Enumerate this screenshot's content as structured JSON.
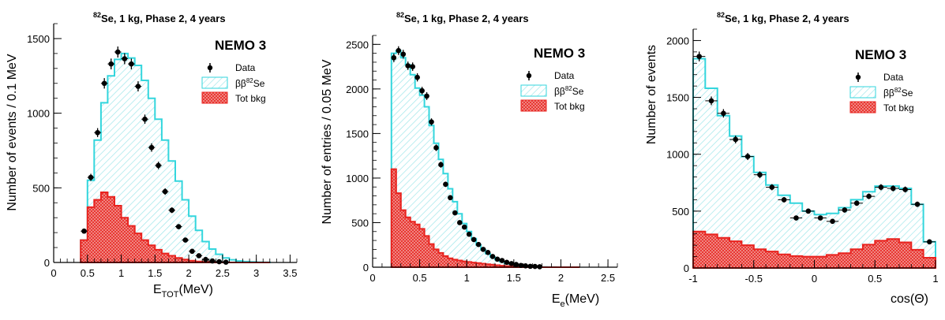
{
  "colors": {
    "signal": "#33d6dd",
    "signal_hatch": "#9fe6ea",
    "bkg": "#e8231f",
    "bkg_fill": "#f19b96",
    "data": "#000000"
  },
  "chart_data": [
    {
      "type": "histogram",
      "title_sup": "82",
      "title": "Se, 1 kg, Phase 2, 4 years",
      "experiment": "NEMO 3",
      "legend": {
        "data": "Data",
        "signal": "ββ",
        "signal_sup": "82",
        "signal_tail": "Se",
        "bkg": "Tot bkg"
      },
      "xlabel_main": "E",
      "xlabel_sub": "TOT",
      "xlabel_tail": "(MeV)",
      "ylabel": "Number of events / 0.1 MeV",
      "xlim": [
        0,
        3.6
      ],
      "ylim": [
        0,
        1600
      ],
      "xticks": [
        0,
        0.5,
        1,
        1.5,
        2,
        2.5,
        3,
        3.5
      ],
      "xtick_labels": [
        "0",
        "0.5",
        "1",
        "1.5",
        "2",
        "2.5",
        "3",
        "3.5"
      ],
      "yticks": [
        0,
        500,
        1000,
        1500
      ],
      "bin_edges": [
        0.4,
        0.5,
        0.6,
        0.7,
        0.8,
        0.9,
        1.0,
        1.1,
        1.2,
        1.3,
        1.4,
        1.5,
        1.6,
        1.7,
        1.8,
        1.9,
        2.0,
        2.1,
        2.2,
        2.3,
        2.4,
        2.5,
        2.6,
        2.7,
        2.8,
        2.9,
        3.0,
        3.1,
        3.2
      ],
      "total_mc": [
        150,
        550,
        820,
        1070,
        1250,
        1360,
        1400,
        1370,
        1320,
        1220,
        1100,
        960,
        820,
        680,
        545,
        420,
        310,
        215,
        140,
        90,
        55,
        30,
        18,
        10,
        6,
        4,
        2,
        1
      ],
      "bkg": [
        150,
        370,
        420,
        470,
        440,
        380,
        300,
        245,
        195,
        150,
        115,
        85,
        60,
        45,
        30,
        20,
        12,
        7,
        4,
        2,
        1,
        1,
        0,
        0,
        0,
        0,
        0,
        0
      ],
      "data": {
        "x": [
          0.45,
          0.55,
          0.65,
          0.75,
          0.85,
          0.95,
          1.05,
          1.15,
          1.25,
          1.35,
          1.45,
          1.55,
          1.65,
          1.75,
          1.85,
          1.95,
          2.05,
          2.15,
          2.25,
          2.35,
          2.45,
          2.55
        ],
        "y": [
          210,
          570,
          870,
          1200,
          1330,
          1410,
          1365,
          1330,
          1180,
          960,
          770,
          650,
          475,
          350,
          240,
          150,
          75,
          45,
          20,
          10,
          5,
          2
        ],
        "err": [
          15,
          24,
          30,
          35,
          36,
          37,
          37,
          36,
          34,
          31,
          28,
          25,
          22,
          19,
          16,
          12,
          9,
          7,
          5,
          3,
          2,
          2
        ]
      }
    },
    {
      "type": "histogram",
      "title_sup": "82",
      "title": "Se, 1 kg, Phase 2, 4 years",
      "experiment": "NEMO 3",
      "legend": {
        "data": "Data",
        "signal": "ββ",
        "signal_sup": "82",
        "signal_tail": "Se",
        "bkg": "Tot bkg"
      },
      "xlabel_main": "E",
      "xlabel_sub": "e",
      "xlabel_tail": "(MeV)",
      "ylabel": "Number of entries / 0.05 MeV",
      "xlim": [
        0,
        2.6
      ],
      "ylim": [
        0,
        2600
      ],
      "xticks": [
        0,
        0.5,
        1,
        1.5,
        2,
        2.5
      ],
      "xtick_labels": [
        "0",
        "0.5",
        "1",
        "1.5",
        "2",
        "2.5"
      ],
      "yticks": [
        0,
        500,
        1000,
        1500,
        2000,
        2500
      ],
      "bin_edges": [
        0.2,
        0.25,
        0.3,
        0.35,
        0.4,
        0.45,
        0.5,
        0.55,
        0.6,
        0.65,
        0.7,
        0.75,
        0.8,
        0.85,
        0.9,
        0.95,
        1.0,
        1.05,
        1.1,
        1.15,
        1.2,
        1.25,
        1.3,
        1.35,
        1.4,
        1.45,
        1.5,
        1.55,
        1.6,
        1.65,
        1.7,
        1.75,
        1.8,
        1.85,
        1.9,
        1.95,
        2.0,
        2.05,
        2.1,
        2.15,
        2.2
      ],
      "total_mc": [
        2400,
        2430,
        2350,
        2270,
        2160,
        2010,
        1930,
        1800,
        1590,
        1390,
        1210,
        1050,
        880,
        735,
        600,
        490,
        400,
        320,
        250,
        195,
        150,
        115,
        85,
        62,
        45,
        33,
        22,
        15,
        10,
        6,
        4,
        3,
        2,
        1,
        1,
        0,
        0,
        0,
        0,
        0
      ],
      "bkg": [
        1100,
        830,
        640,
        560,
        510,
        480,
        430,
        350,
        260,
        200,
        160,
        125,
        100,
        85,
        75,
        65,
        58,
        52,
        46,
        40,
        34,
        28,
        22,
        17,
        12,
        9,
        6,
        4,
        3,
        2,
        1,
        1,
        0,
        0,
        0,
        0,
        0,
        0,
        0,
        0
      ],
      "data": {
        "x": [
          0.225,
          0.275,
          0.325,
          0.375,
          0.425,
          0.475,
          0.525,
          0.575,
          0.625,
          0.675,
          0.725,
          0.775,
          0.825,
          0.875,
          0.925,
          0.975,
          1.025,
          1.075,
          1.125,
          1.175,
          1.225,
          1.275,
          1.325,
          1.375,
          1.425,
          1.475,
          1.525,
          1.575,
          1.625,
          1.675,
          1.725,
          1.775
        ],
        "y": [
          2350,
          2430,
          2390,
          2260,
          2250,
          2130,
          1980,
          1920,
          1630,
          1340,
          1150,
          930,
          780,
          610,
          500,
          450,
          370,
          310,
          255,
          200,
          165,
          120,
          90,
          75,
          55,
          40,
          30,
          20,
          15,
          10,
          8,
          5
        ],
        "err": [
          48,
          49,
          49,
          47,
          47,
          46,
          44,
          44,
          40,
          37,
          34,
          30,
          28,
          25,
          22,
          21,
          19,
          18,
          16,
          14,
          13,
          11,
          9,
          9,
          7,
          6,
          5,
          4,
          4,
          3,
          3,
          2
        ]
      }
    },
    {
      "type": "histogram",
      "title_sup": "82",
      "title": "Se, 1 kg, Phase 2, 4 years",
      "experiment": "NEMO 3",
      "legend": {
        "data": "Data",
        "signal": "ββ",
        "signal_sup": "82",
        "signal_tail": "Se",
        "bkg": "Tot bkg"
      },
      "xlabel_main": "cos(Θ)",
      "xlabel_sub": "",
      "xlabel_tail": "",
      "ylabel": "Number of events",
      "xlim": [
        -1,
        1
      ],
      "ylim": [
        0,
        2100
      ],
      "xticks": [
        -1,
        -0.5,
        0,
        0.5,
        1
      ],
      "xtick_labels": [
        "-1",
        "-0.5",
        "0",
        "0.5",
        "1"
      ],
      "yticks": [
        0,
        500,
        1000,
        1500,
        2000
      ],
      "bin_edges": [
        -1,
        -0.9,
        -0.8,
        -0.7,
        -0.6,
        -0.5,
        -0.4,
        -0.3,
        -0.2,
        -0.1,
        0,
        0.1,
        0.2,
        0.3,
        0.4,
        0.5,
        0.6,
        0.7,
        0.8,
        0.9,
        1
      ],
      "total_mc": [
        1840,
        1580,
        1340,
        1160,
        980,
        840,
        730,
        640,
        570,
        500,
        470,
        480,
        530,
        600,
        670,
        720,
        720,
        700,
        560,
        230
      ],
      "bkg": [
        320,
        295,
        265,
        235,
        200,
        165,
        145,
        120,
        105,
        100,
        100,
        115,
        130,
        165,
        205,
        240,
        255,
        225,
        160,
        90
      ],
      "data": {
        "x": [
          -0.95,
          -0.85,
          -0.75,
          -0.65,
          -0.55,
          -0.45,
          -0.35,
          -0.25,
          -0.15,
          -0.05,
          0.05,
          0.15,
          0.25,
          0.35,
          0.45,
          0.55,
          0.65,
          0.75,
          0.85,
          0.95
        ],
        "y": [
          1860,
          1470,
          1360,
          1130,
          980,
          820,
          710,
          600,
          440,
          500,
          440,
          410,
          510,
          570,
          630,
          710,
          700,
          690,
          560,
          230
        ],
        "err": [
          43,
          38,
          37,
          34,
          31,
          29,
          27,
          24,
          21,
          22,
          21,
          20,
          23,
          24,
          25,
          27,
          26,
          26,
          24,
          15
        ]
      }
    }
  ]
}
